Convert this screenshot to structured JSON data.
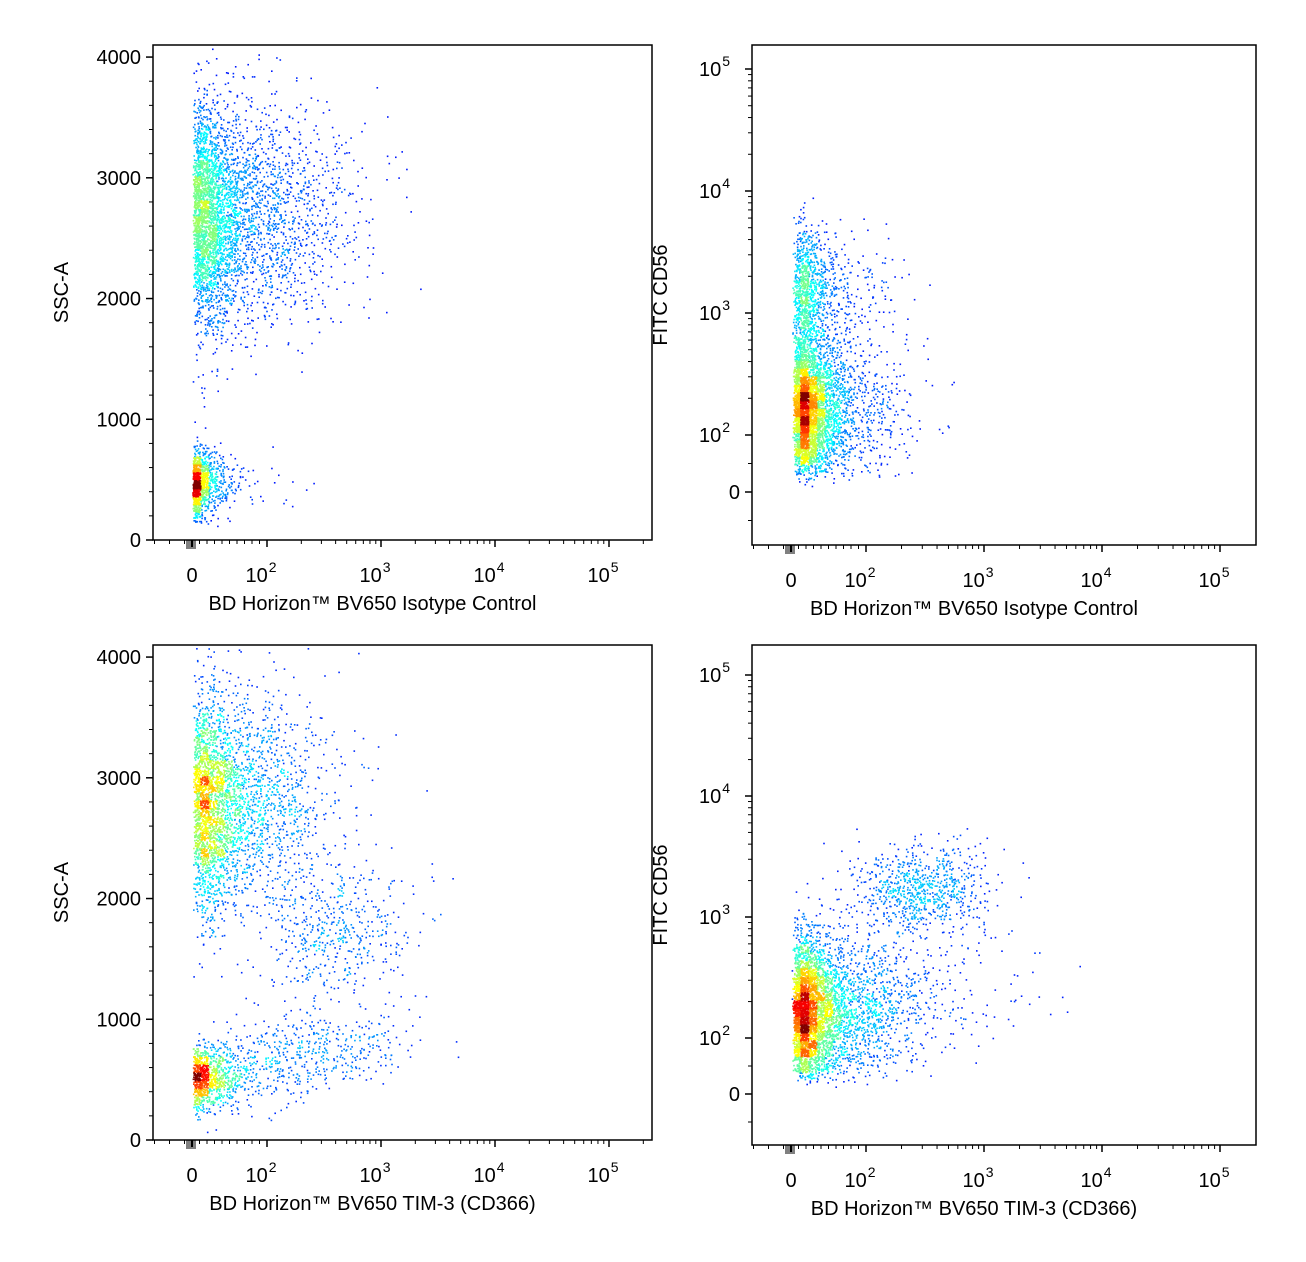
{
  "chart_data": [
    {
      "type": "scatter",
      "xlabel": "BD Horizon™ BV650 Isotype Control",
      "ylabel": "SSC-A",
      "x_scale": "biexponential",
      "y_scale": "linear",
      "xlim": [
        -60,
        250000
      ],
      "ylim": [
        0,
        4100
      ],
      "x_ticks": [
        {
          "value": 0,
          "label": "0"
        },
        {
          "value": 100,
          "label": "10",
          "sup": "2"
        },
        {
          "value": 1000,
          "label": "10",
          "sup": "3"
        },
        {
          "value": 10000,
          "label": "10",
          "sup": "4"
        },
        {
          "value": 100000,
          "label": "10",
          "sup": "5"
        }
      ],
      "y_ticks": [
        {
          "value": 0,
          "label": "0"
        },
        {
          "value": 1000,
          "label": "1000"
        },
        {
          "value": 2000,
          "label": "2000"
        },
        {
          "value": 3000,
          "label": "3000"
        },
        {
          "value": 4000,
          "label": "4000"
        }
      ],
      "populations": [
        {
          "x_center": 35,
          "x_spread": 0.5,
          "y_center": 2700,
          "y_spread": 450,
          "weight": 0.78
        },
        {
          "x_center": 10,
          "x_spread": 0.45,
          "y_center": 480,
          "y_spread": 130,
          "weight": 0.22
        }
      ]
    },
    {
      "type": "scatter",
      "xlabel": "BD Horizon™ BV650 Isotype Control",
      "ylabel": "FITC CD56",
      "x_scale": "biexponential",
      "y_scale": "biexponential",
      "xlim": [
        -60,
        250000
      ],
      "ylim": [
        -150,
        250000
      ],
      "x_ticks": [
        {
          "value": 0,
          "label": "0"
        },
        {
          "value": 100,
          "label": "10",
          "sup": "2"
        },
        {
          "value": 1000,
          "label": "10",
          "sup": "3"
        },
        {
          "value": 10000,
          "label": "10",
          "sup": "4"
        },
        {
          "value": 100000,
          "label": "10",
          "sup": "5"
        }
      ],
      "y_ticks": [
        {
          "value": 0,
          "label": "0"
        },
        {
          "value": 100,
          "label": "10",
          "sup": "2"
        },
        {
          "value": 1000,
          "label": "10",
          "sup": "3"
        },
        {
          "value": 10000,
          "label": "10",
          "sup": "4"
        },
        {
          "value": 100000,
          "label": "10",
          "sup": "5"
        }
      ],
      "populations": [
        {
          "x_center": 25,
          "x_spread": 0.35,
          "y_center": 170,
          "y_spread": 0.3,
          "weight": 0.8
        },
        {
          "x_center": 25,
          "x_spread": 0.35,
          "y_center": 1600,
          "y_spread": 0.25,
          "weight": 0.2
        }
      ]
    },
    {
      "type": "scatter",
      "xlabel": "BD Horizon™ BV650 TIM-3 (CD366)",
      "ylabel": "SSC-A",
      "x_scale": "biexponential",
      "y_scale": "linear",
      "xlim": [
        -60,
        250000
      ],
      "ylim": [
        0,
        4100
      ],
      "x_ticks": [
        {
          "value": 0,
          "label": "0"
        },
        {
          "value": 100,
          "label": "10",
          "sup": "2"
        },
        {
          "value": 1000,
          "label": "10",
          "sup": "3"
        },
        {
          "value": 10000,
          "label": "10",
          "sup": "4"
        },
        {
          "value": 100000,
          "label": "10",
          "sup": "5"
        }
      ],
      "y_ticks": [
        {
          "value": 0,
          "label": "0"
        },
        {
          "value": 1000,
          "label": "1000"
        },
        {
          "value": 2000,
          "label": "2000"
        },
        {
          "value": 3000,
          "label": "3000"
        },
        {
          "value": 4000,
          "label": "4000"
        }
      ],
      "populations": [
        {
          "x_center": 35,
          "x_spread": 0.45,
          "y_center": 2800,
          "y_spread": 450,
          "weight": 0.62
        },
        {
          "x_center": 20,
          "x_spread": 0.45,
          "y_center": 520,
          "y_spread": 130,
          "weight": 0.2
        },
        {
          "x_center": 400,
          "x_spread": 0.35,
          "y_center": 1700,
          "y_spread": 280,
          "weight": 0.1
        },
        {
          "x_center": 250,
          "x_spread": 0.4,
          "y_center": 750,
          "y_spread": 150,
          "weight": 0.08
        }
      ]
    },
    {
      "type": "scatter",
      "xlabel": "BD Horizon™ BV650 TIM-3 (CD366)",
      "ylabel": "FITC CD56",
      "x_scale": "biexponential",
      "y_scale": "biexponential",
      "xlim": [
        -60,
        250000
      ],
      "ylim": [
        -150,
        250000
      ],
      "x_ticks": [
        {
          "value": 0,
          "label": "0"
        },
        {
          "value": 100,
          "label": "10",
          "sup": "2"
        },
        {
          "value": 1000,
          "label": "10",
          "sup": "3"
        },
        {
          "value": 10000,
          "label": "10",
          "sup": "4"
        },
        {
          "value": 100000,
          "label": "10",
          "sup": "5"
        }
      ],
      "y_ticks": [
        {
          "value": 0,
          "label": "0"
        },
        {
          "value": 100,
          "label": "10",
          "sup": "2"
        },
        {
          "value": 1000,
          "label": "10",
          "sup": "3"
        },
        {
          "value": 10000,
          "label": "10",
          "sup": "4"
        },
        {
          "value": 100000,
          "label": "10",
          "sup": "5"
        }
      ],
      "populations": [
        {
          "x_center": 30,
          "x_spread": 0.4,
          "y_center": 170,
          "y_spread": 0.3,
          "weight": 0.8
        },
        {
          "x_center": 300,
          "x_spread": 0.3,
          "y_center": 1700,
          "y_spread": 0.18,
          "weight": 0.15
        },
        {
          "x_center": 200,
          "x_spread": 0.5,
          "y_center": 300,
          "y_spread": 0.3,
          "weight": 0.05
        }
      ]
    }
  ]
}
